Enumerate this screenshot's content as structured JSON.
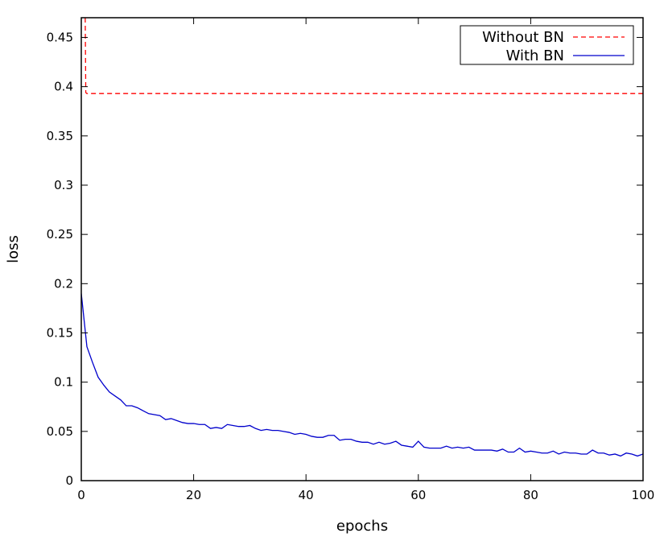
{
  "chart_data": {
    "type": "line",
    "title": "",
    "xlabel": "epochs",
    "ylabel": "loss",
    "xlim": [
      0,
      100
    ],
    "ylim": [
      0,
      0.47
    ],
    "xticks": [
      0,
      20,
      40,
      60,
      80,
      100
    ],
    "yticks": [
      0,
      0.05,
      0.1,
      0.15,
      0.2,
      0.25,
      0.3,
      0.35,
      0.4,
      0.45
    ],
    "xtick_labels": [
      "0",
      "20",
      "40",
      "60",
      "80",
      "100"
    ],
    "ytick_labels": [
      "0",
      "0.05",
      "0.1",
      "0.15",
      "0.2",
      "0.25",
      "0.3",
      "0.35",
      "0.4",
      "0.45"
    ],
    "legend_position": "top-right",
    "grid": false,
    "series": [
      {
        "name": "Without BN",
        "color": "#ff0000",
        "style": "dashed",
        "x": [
          0.7,
          0.8,
          1,
          10,
          20,
          30,
          40,
          50,
          60,
          70,
          80,
          90,
          100
        ],
        "y": [
          0.47,
          0.394,
          0.393,
          0.393,
          0.393,
          0.393,
          0.393,
          0.393,
          0.393,
          0.393,
          0.393,
          0.393,
          0.393
        ]
      },
      {
        "name": "With BN",
        "color": "#0000cc",
        "style": "solid",
        "x": [
          0,
          1,
          2,
          3,
          4,
          5,
          6,
          7,
          8,
          9,
          10,
          11,
          12,
          13,
          14,
          15,
          16,
          17,
          18,
          19,
          20,
          21,
          22,
          23,
          24,
          25,
          26,
          27,
          28,
          29,
          30,
          31,
          32,
          33,
          34,
          35,
          36,
          37,
          38,
          39,
          40,
          41,
          42,
          43,
          44,
          45,
          46,
          47,
          48,
          49,
          50,
          51,
          52,
          53,
          54,
          55,
          56,
          57,
          58,
          59,
          60,
          61,
          62,
          63,
          64,
          65,
          66,
          67,
          68,
          69,
          70,
          71,
          72,
          73,
          74,
          75,
          76,
          77,
          78,
          79,
          80,
          81,
          82,
          83,
          84,
          85,
          86,
          87,
          88,
          89,
          90,
          91,
          92,
          93,
          94,
          95,
          96,
          97,
          98,
          99,
          100
        ],
        "y": [
          0.19,
          0.136,
          0.12,
          0.105,
          0.097,
          0.09,
          0.086,
          0.082,
          0.076,
          0.076,
          0.074,
          0.071,
          0.068,
          0.067,
          0.066,
          0.062,
          0.063,
          0.061,
          0.059,
          0.058,
          0.058,
          0.057,
          0.057,
          0.053,
          0.054,
          0.053,
          0.057,
          0.056,
          0.055,
          0.055,
          0.056,
          0.053,
          0.051,
          0.052,
          0.051,
          0.051,
          0.05,
          0.049,
          0.047,
          0.048,
          0.047,
          0.045,
          0.044,
          0.044,
          0.046,
          0.046,
          0.041,
          0.042,
          0.042,
          0.04,
          0.039,
          0.039,
          0.037,
          0.039,
          0.037,
          0.038,
          0.04,
          0.036,
          0.035,
          0.034,
          0.04,
          0.034,
          0.033,
          0.033,
          0.033,
          0.035,
          0.033,
          0.034,
          0.033,
          0.034,
          0.031,
          0.031,
          0.031,
          0.031,
          0.03,
          0.032,
          0.029,
          0.029,
          0.033,
          0.029,
          0.03,
          0.029,
          0.028,
          0.028,
          0.03,
          0.027,
          0.029,
          0.028,
          0.028,
          0.027,
          0.027,
          0.031,
          0.028,
          0.028,
          0.026,
          0.027,
          0.025,
          0.028,
          0.027,
          0.025,
          0.027
        ]
      }
    ]
  }
}
